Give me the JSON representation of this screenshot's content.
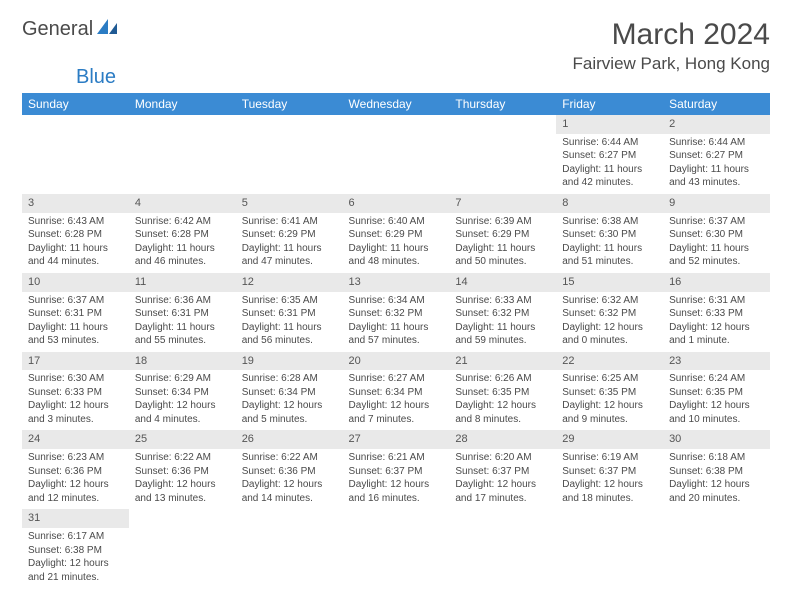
{
  "logo": {
    "text_general": "General",
    "text_blue": "Blue"
  },
  "title": "March 2024",
  "location": "Fairview Park, Hong Kong",
  "colors": {
    "header_bg": "#3b8bd4",
    "header_text": "#ffffff",
    "daynum_bg": "#e9e9e9",
    "body_text": "#4a4a4a",
    "page_bg": "#ffffff",
    "logo_blue": "#2b7cc4"
  },
  "weekdays": [
    "Sunday",
    "Monday",
    "Tuesday",
    "Wednesday",
    "Thursday",
    "Friday",
    "Saturday"
  ],
  "weeks": [
    [
      {
        "empty": true
      },
      {
        "empty": true
      },
      {
        "empty": true
      },
      {
        "empty": true
      },
      {
        "empty": true
      },
      {
        "day": "1",
        "sunrise": "Sunrise: 6:44 AM",
        "sunset": "Sunset: 6:27 PM",
        "daylight": "Daylight: 11 hours and 42 minutes."
      },
      {
        "day": "2",
        "sunrise": "Sunrise: 6:44 AM",
        "sunset": "Sunset: 6:27 PM",
        "daylight": "Daylight: 11 hours and 43 minutes."
      }
    ],
    [
      {
        "day": "3",
        "sunrise": "Sunrise: 6:43 AM",
        "sunset": "Sunset: 6:28 PM",
        "daylight": "Daylight: 11 hours and 44 minutes."
      },
      {
        "day": "4",
        "sunrise": "Sunrise: 6:42 AM",
        "sunset": "Sunset: 6:28 PM",
        "daylight": "Daylight: 11 hours and 46 minutes."
      },
      {
        "day": "5",
        "sunrise": "Sunrise: 6:41 AM",
        "sunset": "Sunset: 6:29 PM",
        "daylight": "Daylight: 11 hours and 47 minutes."
      },
      {
        "day": "6",
        "sunrise": "Sunrise: 6:40 AM",
        "sunset": "Sunset: 6:29 PM",
        "daylight": "Daylight: 11 hours and 48 minutes."
      },
      {
        "day": "7",
        "sunrise": "Sunrise: 6:39 AM",
        "sunset": "Sunset: 6:29 PM",
        "daylight": "Daylight: 11 hours and 50 minutes."
      },
      {
        "day": "8",
        "sunrise": "Sunrise: 6:38 AM",
        "sunset": "Sunset: 6:30 PM",
        "daylight": "Daylight: 11 hours and 51 minutes."
      },
      {
        "day": "9",
        "sunrise": "Sunrise: 6:37 AM",
        "sunset": "Sunset: 6:30 PM",
        "daylight": "Daylight: 11 hours and 52 minutes."
      }
    ],
    [
      {
        "day": "10",
        "sunrise": "Sunrise: 6:37 AM",
        "sunset": "Sunset: 6:31 PM",
        "daylight": "Daylight: 11 hours and 53 minutes."
      },
      {
        "day": "11",
        "sunrise": "Sunrise: 6:36 AM",
        "sunset": "Sunset: 6:31 PM",
        "daylight": "Daylight: 11 hours and 55 minutes."
      },
      {
        "day": "12",
        "sunrise": "Sunrise: 6:35 AM",
        "sunset": "Sunset: 6:31 PM",
        "daylight": "Daylight: 11 hours and 56 minutes."
      },
      {
        "day": "13",
        "sunrise": "Sunrise: 6:34 AM",
        "sunset": "Sunset: 6:32 PM",
        "daylight": "Daylight: 11 hours and 57 minutes."
      },
      {
        "day": "14",
        "sunrise": "Sunrise: 6:33 AM",
        "sunset": "Sunset: 6:32 PM",
        "daylight": "Daylight: 11 hours and 59 minutes."
      },
      {
        "day": "15",
        "sunrise": "Sunrise: 6:32 AM",
        "sunset": "Sunset: 6:32 PM",
        "daylight": "Daylight: 12 hours and 0 minutes."
      },
      {
        "day": "16",
        "sunrise": "Sunrise: 6:31 AM",
        "sunset": "Sunset: 6:33 PM",
        "daylight": "Daylight: 12 hours and 1 minute."
      }
    ],
    [
      {
        "day": "17",
        "sunrise": "Sunrise: 6:30 AM",
        "sunset": "Sunset: 6:33 PM",
        "daylight": "Daylight: 12 hours and 3 minutes."
      },
      {
        "day": "18",
        "sunrise": "Sunrise: 6:29 AM",
        "sunset": "Sunset: 6:34 PM",
        "daylight": "Daylight: 12 hours and 4 minutes."
      },
      {
        "day": "19",
        "sunrise": "Sunrise: 6:28 AM",
        "sunset": "Sunset: 6:34 PM",
        "daylight": "Daylight: 12 hours and 5 minutes."
      },
      {
        "day": "20",
        "sunrise": "Sunrise: 6:27 AM",
        "sunset": "Sunset: 6:34 PM",
        "daylight": "Daylight: 12 hours and 7 minutes."
      },
      {
        "day": "21",
        "sunrise": "Sunrise: 6:26 AM",
        "sunset": "Sunset: 6:35 PM",
        "daylight": "Daylight: 12 hours and 8 minutes."
      },
      {
        "day": "22",
        "sunrise": "Sunrise: 6:25 AM",
        "sunset": "Sunset: 6:35 PM",
        "daylight": "Daylight: 12 hours and 9 minutes."
      },
      {
        "day": "23",
        "sunrise": "Sunrise: 6:24 AM",
        "sunset": "Sunset: 6:35 PM",
        "daylight": "Daylight: 12 hours and 10 minutes."
      }
    ],
    [
      {
        "day": "24",
        "sunrise": "Sunrise: 6:23 AM",
        "sunset": "Sunset: 6:36 PM",
        "daylight": "Daylight: 12 hours and 12 minutes."
      },
      {
        "day": "25",
        "sunrise": "Sunrise: 6:22 AM",
        "sunset": "Sunset: 6:36 PM",
        "daylight": "Daylight: 12 hours and 13 minutes."
      },
      {
        "day": "26",
        "sunrise": "Sunrise: 6:22 AM",
        "sunset": "Sunset: 6:36 PM",
        "daylight": "Daylight: 12 hours and 14 minutes."
      },
      {
        "day": "27",
        "sunrise": "Sunrise: 6:21 AM",
        "sunset": "Sunset: 6:37 PM",
        "daylight": "Daylight: 12 hours and 16 minutes."
      },
      {
        "day": "28",
        "sunrise": "Sunrise: 6:20 AM",
        "sunset": "Sunset: 6:37 PM",
        "daylight": "Daylight: 12 hours and 17 minutes."
      },
      {
        "day": "29",
        "sunrise": "Sunrise: 6:19 AM",
        "sunset": "Sunset: 6:37 PM",
        "daylight": "Daylight: 12 hours and 18 minutes."
      },
      {
        "day": "30",
        "sunrise": "Sunrise: 6:18 AM",
        "sunset": "Sunset: 6:38 PM",
        "daylight": "Daylight: 12 hours and 20 minutes."
      }
    ],
    [
      {
        "day": "31",
        "sunrise": "Sunrise: 6:17 AM",
        "sunset": "Sunset: 6:38 PM",
        "daylight": "Daylight: 12 hours and 21 minutes."
      },
      {
        "empty": true
      },
      {
        "empty": true
      },
      {
        "empty": true
      },
      {
        "empty": true
      },
      {
        "empty": true
      },
      {
        "empty": true
      }
    ]
  ]
}
